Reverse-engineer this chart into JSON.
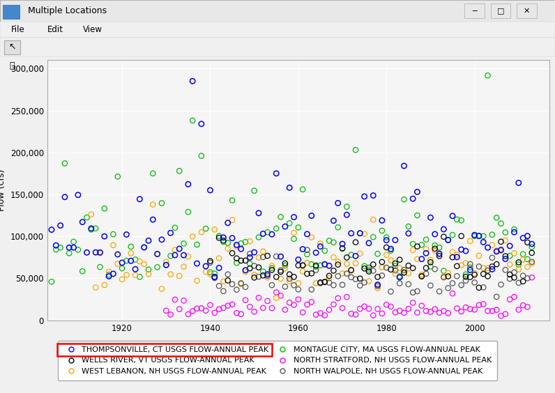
{
  "title": "Multiple Locations",
  "ylabel": "Flow (cfs)",
  "ylim": [
    0,
    310000
  ],
  "yticks": [
    0,
    50000,
    100000,
    150000,
    200000,
    250000,
    300000
  ],
  "ytick_labels": [
    "0",
    "50,000",
    "100,000",
    "150,000",
    "200,000",
    "250,000",
    "300,000"
  ],
  "xlim": [
    1903,
    2017
  ],
  "xticks": [
    1920,
    1940,
    1960,
    1980,
    2000
  ],
  "series": [
    {
      "label": "THOMPSONVILLE, CT USGS FLOW-ANNUAL PEAK",
      "color": "#0000ff",
      "highlighted": true,
      "zorder": 5
    },
    {
      "label": "WELLS RIVER, VT USGS FLOW-ANNUAL PEAK",
      "color": "#000000",
      "highlighted": false,
      "zorder": 3
    },
    {
      "label": "WEST LEBANON, NH USGS FLOW-ANNUAL PEAK",
      "color": "#ffa500",
      "highlighted": false,
      "zorder": 3
    },
    {
      "label": "MONTAGUE CITY, MA USGS FLOW-ANNUAL PEAK",
      "color": "#00bb00",
      "highlighted": false,
      "zorder": 3
    },
    {
      "label": "NORTH STRATFORD, NH USGS FLOW-ANNUAL PEAK",
      "color": "#ff00ff",
      "highlighted": false,
      "zorder": 3
    },
    {
      "label": "NORTH WALPOLE, NH USGS FLOW-ANNUAL PEAK",
      "color": "#555555",
      "highlighted": false,
      "zorder": 3
    }
  ],
  "highlight_box_color": "#ff0000",
  "win_bg": "#f0f0f0",
  "titlebar_bg": "#0078d7",
  "titlebar_text": "Multiple Locations",
  "menu_items": [
    "File",
    "Edit",
    "View"
  ],
  "plot_bg": "#f5f5f5",
  "outer_bg": "#d4d0c8"
}
